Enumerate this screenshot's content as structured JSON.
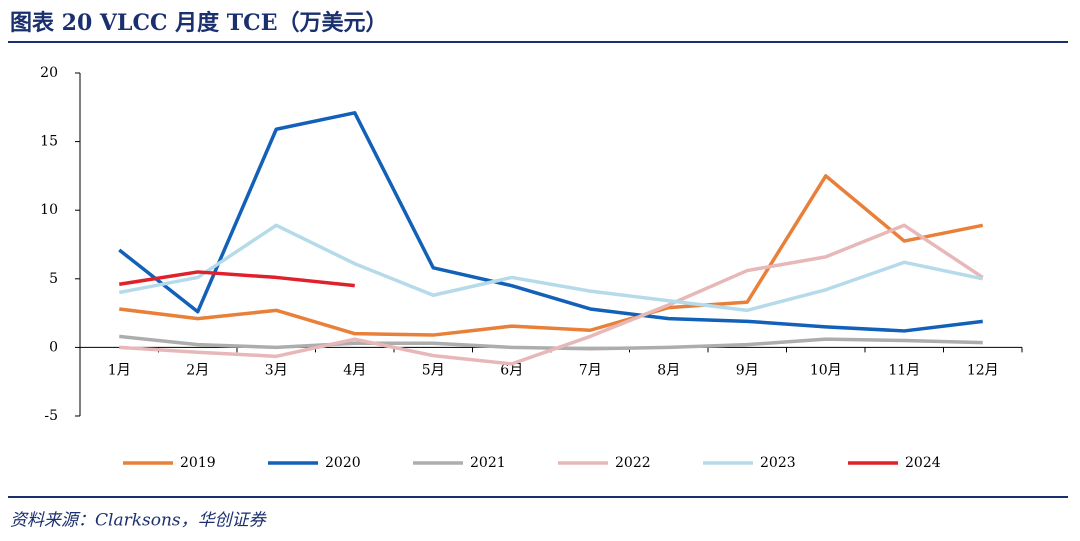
{
  "chart_data": {
    "type": "line",
    "title": "图表 20 VLCC 月度 TCE（万美元）",
    "source": "资料来源：Clarksons，华创证券",
    "categories": [
      "1月",
      "2月",
      "3月",
      "4月",
      "5月",
      "6月",
      "7月",
      "8月",
      "9月",
      "10月",
      "11月",
      "12月"
    ],
    "ylim": [
      -5,
      20
    ],
    "yticks": [
      -5,
      0,
      5,
      10,
      15,
      20
    ],
    "legend": "bottom",
    "series": [
      {
        "name": "2019",
        "color": "#e8803a",
        "values": [
          2.8,
          2.1,
          2.7,
          1.0,
          0.9,
          1.55,
          1.25,
          2.9,
          3.3,
          12.5,
          7.75,
          8.9
        ]
      },
      {
        "name": "2020",
        "color": "#1360b8",
        "values": [
          7.1,
          2.6,
          15.9,
          17.1,
          5.8,
          4.5,
          2.8,
          2.1,
          1.9,
          1.5,
          1.2,
          1.9
        ]
      },
      {
        "name": "2021",
        "color": "#adadad",
        "values": [
          0.8,
          0.2,
          0.0,
          0.3,
          0.3,
          0.0,
          -0.1,
          0.0,
          0.2,
          0.6,
          0.5,
          0.35
        ]
      },
      {
        "name": "2022",
        "color": "#e8b7b7",
        "values": [
          0.0,
          -0.35,
          -0.65,
          0.6,
          -0.6,
          -1.2,
          0.8,
          3.1,
          5.6,
          6.6,
          8.9,
          5.1
        ]
      },
      {
        "name": "2023",
        "color": "#b5dbea",
        "values": [
          4.0,
          5.1,
          8.9,
          6.1,
          3.8,
          5.1,
          4.1,
          3.4,
          2.7,
          4.2,
          6.2,
          5.0
        ]
      },
      {
        "name": "2024",
        "color": "#e0202a",
        "values": [
          4.6,
          5.5,
          5.1,
          4.5,
          null,
          null,
          null,
          null,
          null,
          null,
          null,
          null
        ]
      }
    ]
  }
}
